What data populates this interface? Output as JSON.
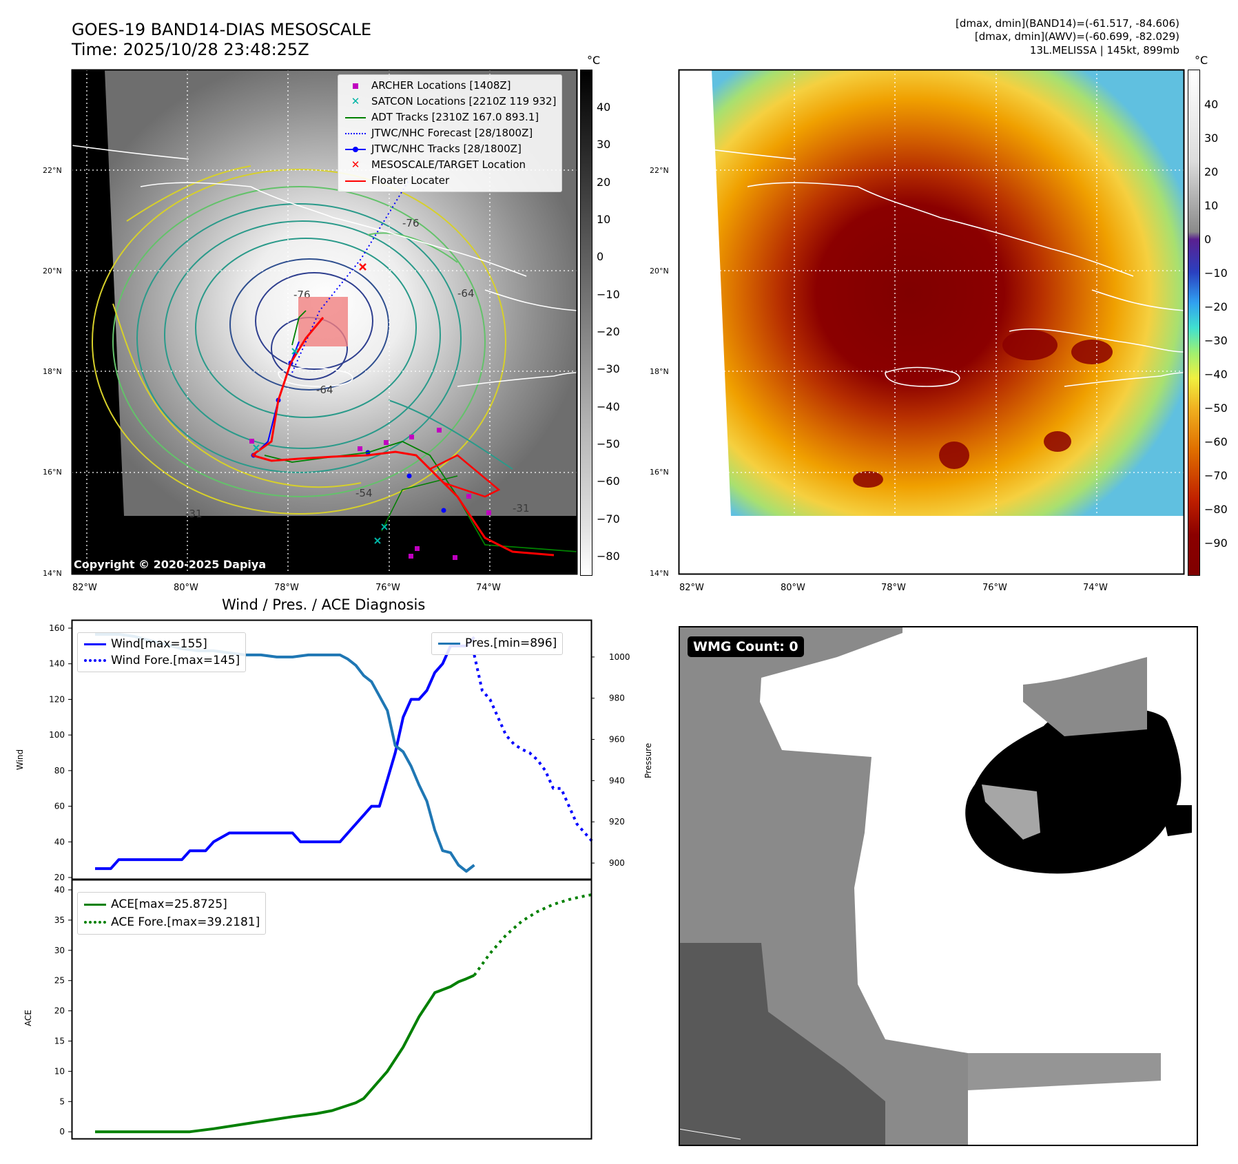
{
  "header": {
    "title_line1": "GOES-19 BAND14-DIAS MESOSCALE",
    "title_line2": "Time: 2025/10/28 23:48:25Z",
    "right_line1": "[dmax, dmin](BAND14)=(-61.517, -84.606)",
    "right_line2": "[dmax, dmin](AWV)=(-60.699, -82.029)",
    "right_line3": "13L.MELISSA | 145kt, 899mb"
  },
  "map": {
    "lon_labels": [
      "82°W",
      "80°W",
      "78°W",
      "76°W",
      "74°W"
    ],
    "lat_labels": [
      "22°N",
      "20°N",
      "18°N",
      "16°N",
      "14°N"
    ],
    "copyright": "Copyright © 2020-2025 Dapiya",
    "contour_labels": [
      "-76",
      "-64",
      "-76",
      "-64",
      "-31",
      "-54",
      "-31"
    ],
    "colorbar_unit": "°C",
    "colorbar_ticks_left": [
      "40",
      "30",
      "20",
      "10",
      "0",
      "−10",
      "−20",
      "−30",
      "−40",
      "−50",
      "−60",
      "−70",
      "−80"
    ],
    "colorbar_ticks_right": [
      "40",
      "30",
      "20",
      "10",
      "0",
      "−10",
      "−20",
      "−30",
      "−40",
      "−50",
      "−60",
      "−70",
      "−80",
      "−90"
    ],
    "legend": [
      {
        "label": "ARCHER Locations [1408Z]",
        "color": "#c000c0"
      },
      {
        "label": "SATCON Locations [2210Z 119 932]",
        "color": "#00b5a5"
      },
      {
        "label": "ADT Tracks [2310Z 167.0 893.1]",
        "color": "#008000"
      },
      {
        "label": "JTWC/NHC Forecast [28/1800Z]",
        "color": "#0000ff"
      },
      {
        "label": "JTWC/NHC Tracks [28/1800Z]",
        "color": "#0000ff"
      },
      {
        "label": "MESOSCALE/TARGET Location",
        "color": "#ff0000"
      },
      {
        "label": "Floater Locater",
        "color": "#ff0000"
      }
    ]
  },
  "diag": {
    "title": "Wind / Pres. / ACE Diagnosis",
    "wind_ylabel": "Wind",
    "pres_ylabel": "Pressure",
    "ace_ylabel": "ACE",
    "legend_wind": "Wind[max=155]",
    "legend_wind_fore": "Wind Fore.[max=145]",
    "legend_pres": "Pres.[min=896]",
    "legend_ace": "ACE[max=25.8725]",
    "legend_ace_fore": "ACE Fore.[max=39.2181]",
    "wmg": "WMG Count: 0"
  },
  "chart_data": [
    {
      "type": "line",
      "title": "Wind / Pres. / ACE Diagnosis",
      "ylabel": "Wind",
      "ylim": [
        20,
        160
      ],
      "yticks": [
        20,
        40,
        60,
        80,
        100,
        120,
        140,
        160
      ],
      "y2label": "Pressure",
      "y2lim": [
        893,
        1014
      ],
      "y2ticks": [
        900,
        920,
        940,
        960,
        980,
        1000
      ],
      "xlim": [
        0,
        60
      ],
      "series": [
        {
          "name": "Wind[max=155]",
          "color": "#0000ff",
          "style": "solid",
          "x": [
            0,
            2,
            3,
            5,
            7,
            9,
            11,
            12,
            14,
            15,
            17,
            19,
            21,
            23,
            25,
            26,
            28,
            30,
            31,
            33,
            34,
            35,
            36,
            37,
            38,
            39,
            40,
            41,
            42,
            43,
            44,
            45,
            46,
            47,
            48
          ],
          "y": [
            25,
            25,
            30,
            30,
            30,
            30,
            30,
            35,
            35,
            40,
            45,
            45,
            45,
            45,
            45,
            40,
            40,
            40,
            40,
            50,
            55,
            60,
            60,
            75,
            90,
            110,
            120,
            120,
            125,
            135,
            140,
            150,
            150,
            150,
            155
          ]
        },
        {
          "name": "Wind Fore.[max=145]",
          "color": "#0000ff",
          "style": "dotted",
          "x": [
            48,
            49,
            50,
            51,
            52,
            53,
            54,
            55,
            56,
            57,
            58,
            59,
            60,
            61,
            62,
            63
          ],
          "y": [
            145,
            125,
            120,
            110,
            100,
            95,
            92,
            90,
            86,
            80,
            70,
            70,
            60,
            50,
            45,
            40
          ]
        },
        {
          "name": "Pres.[min=896]",
          "color": "#1f77b4",
          "style": "solid",
          "axis": "y2",
          "x": [
            0,
            3,
            5,
            7,
            9,
            11,
            13,
            15,
            17,
            19,
            21,
            23,
            25,
            27,
            29,
            31,
            32,
            33,
            34,
            35,
            36,
            37,
            38,
            39,
            40,
            41,
            42,
            43,
            44,
            45,
            46,
            47,
            48
          ],
          "y": [
            1011,
            1011,
            1010,
            1008,
            1006,
            1004,
            1003,
            1003,
            1002,
            1001,
            1001,
            1000,
            1000,
            1001,
            1001,
            1001,
            999,
            996,
            991,
            988,
            981,
            974,
            957,
            954,
            947,
            938,
            930,
            916,
            906,
            905,
            899,
            896,
            899
          ]
        }
      ]
    },
    {
      "type": "line",
      "ylabel": "ACE",
      "ylim": [
        -1,
        40
      ],
      "yticks": [
        0,
        5,
        10,
        15,
        20,
        25,
        30,
        35,
        40
      ],
      "xlim": [
        0,
        60
      ],
      "series": [
        {
          "name": "ACE[max=25.8725]",
          "color": "#008000",
          "style": "solid",
          "x": [
            0,
            5,
            10,
            12,
            15,
            20,
            25,
            28,
            30,
            33,
            34,
            35,
            37,
            39,
            41,
            43,
            45,
            46,
            47,
            48
          ],
          "y": [
            0,
            0,
            0,
            0,
            0.5,
            1.5,
            2.5,
            3,
            3.5,
            4.8,
            5.5,
            7,
            10,
            14,
            19,
            23,
            24,
            24.8,
            25.3,
            25.87
          ]
        },
        {
          "name": "ACE Fore.[max=39.2181]",
          "color": "#008000",
          "style": "dotted",
          "x": [
            48,
            50,
            52,
            54,
            56,
            58,
            60,
            62,
            63
          ],
          "y": [
            25.87,
            29.5,
            32.5,
            34.8,
            36.4,
            37.6,
            38.4,
            39.0,
            39.22
          ]
        }
      ]
    }
  ]
}
